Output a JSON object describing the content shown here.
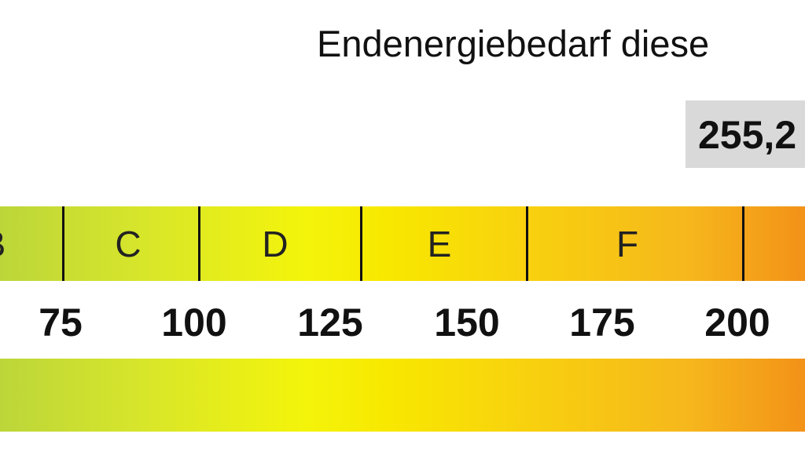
{
  "header": {
    "title": "Endenergiebedarf diese"
  },
  "value": "255,2",
  "classes": [
    "B",
    "C",
    "D",
    "E",
    "F"
  ],
  "scale": [
    75,
    100,
    125,
    150,
    175,
    200
  ]
}
